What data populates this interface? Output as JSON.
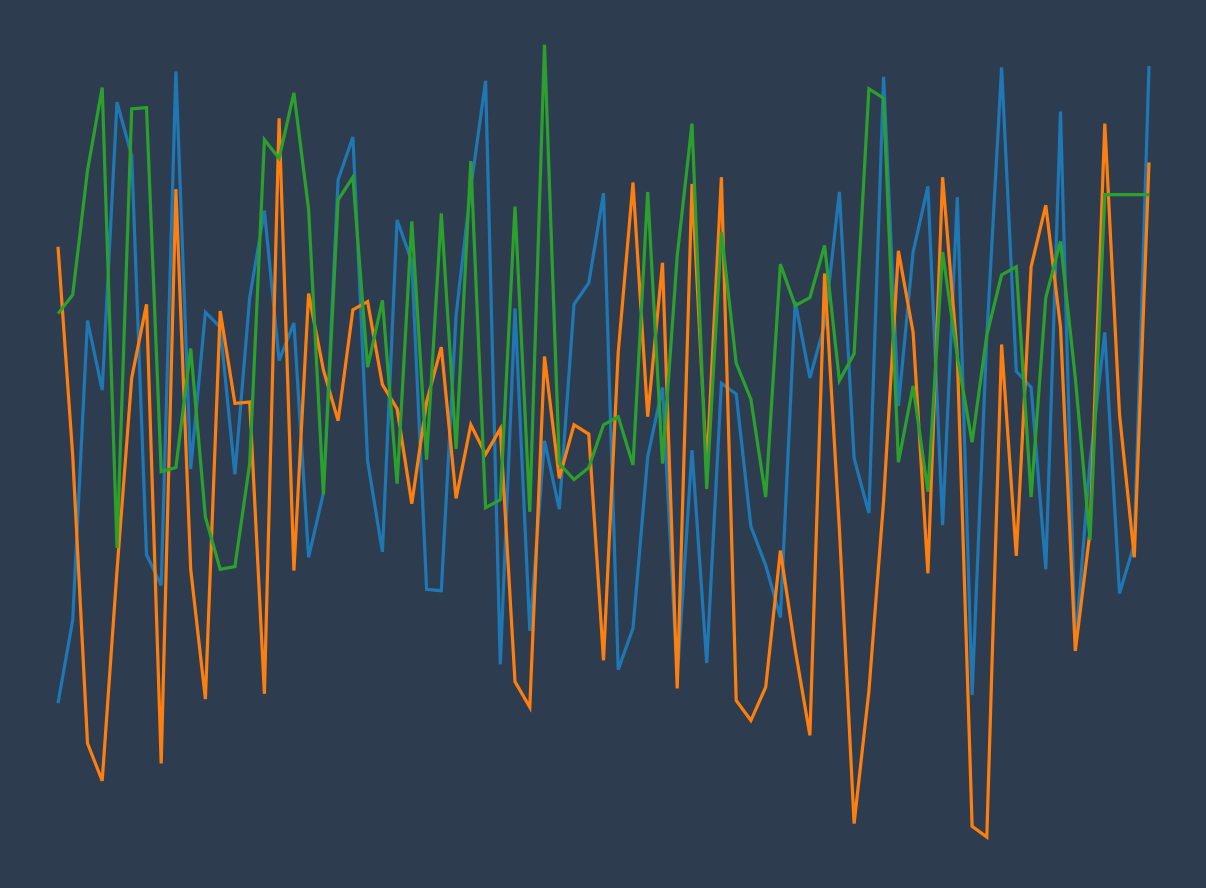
{
  "background_color": "#2d3d4f",
  "chart_data": {
    "type": "line",
    "title": "",
    "xlabel": "",
    "ylabel": "",
    "axes_visible": false,
    "grid": false,
    "legend": "none",
    "xlim": [
      0,
      74
    ],
    "ylim": [
      -3,
      3
    ],
    "x": [
      0,
      1,
      2,
      3,
      4,
      5,
      6,
      7,
      8,
      9,
      10,
      11,
      12,
      13,
      14,
      15,
      16,
      17,
      18,
      19,
      20,
      21,
      22,
      23,
      24,
      25,
      26,
      27,
      28,
      29,
      30,
      31,
      32,
      33,
      34,
      35,
      36,
      37,
      38,
      39,
      40,
      41,
      42,
      43,
      44,
      45,
      46,
      47,
      48,
      49,
      50,
      51,
      52,
      53,
      54,
      55,
      56,
      57,
      58,
      59,
      60,
      61,
      62,
      63,
      64,
      65,
      66,
      67,
      68,
      69,
      70,
      71,
      72,
      73,
      74
    ],
    "series": [
      {
        "color": "#1f77b4",
        "values": [
          -1.94,
          -1.32,
          0.92,
          0.4,
          2.55,
          2.15,
          -0.83,
          -1.06,
          2.78,
          -0.19,
          0.98,
          0.87,
          -0.23,
          1.09,
          1.74,
          0.62,
          0.9,
          -0.85,
          -0.37,
          1.97,
          2.29,
          -0.13,
          -0.81,
          1.67,
          1.36,
          -1.09,
          -1.1,
          0.96,
          1.91,
          2.71,
          -1.65,
          1.01,
          -1.4,
          0.02,
          -0.49,
          1.04,
          1.2,
          1.87,
          -1.69,
          -1.38,
          -0.1,
          0.42,
          -1.76,
          -0.05,
          -1.64,
          0.45,
          0.37,
          -0.62,
          -0.91,
          -1.3,
          1.06,
          0.49,
          0.89,
          1.88,
          -0.11,
          -0.52,
          2.74,
          0.28,
          1.43,
          1.92,
          -0.61,
          1.84,
          -1.88,
          0.8,
          2.81,
          0.54,
          0.42,
          -0.94,
          2.48,
          -1.52,
          -0.14,
          0.83,
          -1.12,
          -0.75,
          2.82
        ]
      },
      {
        "color": "#ff7f0e",
        "values": [
          1.47,
          -0.09,
          -2.24,
          -2.52,
          -0.95,
          0.49,
          1.04,
          -2.39,
          1.9,
          -0.94,
          -1.91,
          0.99,
          0.3,
          0.31,
          -1.87,
          2.43,
          -0.95,
          1.12,
          0.55,
          0.17,
          1.0,
          1.06,
          0.44,
          0.26,
          -0.45,
          0.31,
          0.72,
          -0.41,
          0.14,
          -0.08,
          0.11,
          -1.78,
          -1.97,
          0.65,
          -0.26,
          0.14,
          0.07,
          -1.62,
          0.68,
          1.95,
          0.2,
          1.35,
          -1.83,
          1.94,
          -0.19,
          1.99,
          -1.92,
          -2.07,
          -1.82,
          -0.8,
          -1.54,
          -2.18,
          1.27,
          -0.64,
          -2.84,
          -1.85,
          -0.43,
          1.44,
          0.83,
          -0.97,
          1.99,
          0.66,
          -2.86,
          -2.94,
          0.74,
          -0.84,
          1.32,
          1.78,
          0.87,
          -1.55,
          -0.66,
          2.39,
          0.22,
          -0.85,
          2.1
        ]
      },
      {
        "color": "#2ca02c",
        "values": [
          0.97,
          1.11,
          2.04,
          2.66,
          -0.78,
          2.5,
          2.51,
          -0.21,
          -0.18,
          0.71,
          -0.55,
          -0.94,
          -0.92,
          -0.15,
          2.27,
          2.13,
          2.62,
          1.75,
          -0.38,
          1.82,
          1.99,
          0.57,
          1.07,
          -0.3,
          1.66,
          -0.12,
          1.72,
          -0.04,
          2.11,
          -0.48,
          -0.42,
          1.77,
          -0.51,
          2.98,
          -0.15,
          -0.27,
          -0.18,
          0.14,
          0.2,
          -0.16,
          1.88,
          -0.15,
          1.4,
          2.39,
          -0.34,
          1.58,
          0.6,
          0.33,
          -0.4,
          1.34,
          1.03,
          1.09,
          1.48,
          0.47,
          0.67,
          2.65,
          2.58,
          -0.14,
          0.43,
          -0.36,
          1.43,
          0.65,
          0.01,
          0.81,
          1.26,
          1.32,
          -0.4,
          1.09,
          1.51,
          0.49,
          -0.72,
          1.86,
          1.86,
          1.86,
          1.86
        ]
      }
    ]
  }
}
